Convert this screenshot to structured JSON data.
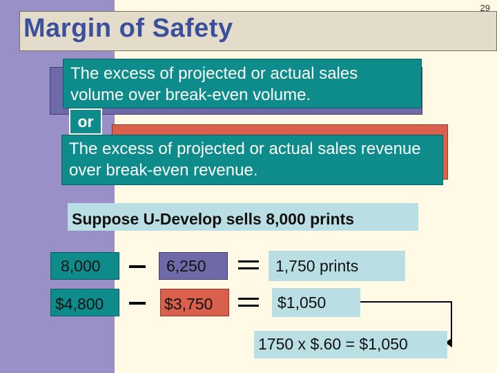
{
  "slide": {
    "page_number": "29",
    "title": "Margin of Safety"
  },
  "definitions": {
    "volume_text": "The excess of projected or actual sales volume over break-even volume.",
    "or_label": "or",
    "revenue_text": "The excess of projected or actual sales revenue over break-even revenue."
  },
  "example": {
    "heading": "Suppose U-Develop sells 8,000 prints",
    "units": {
      "sales": "8,000",
      "break_even": "6,250",
      "margin": "1,750 prints"
    },
    "dollars": {
      "sales": "$4,800",
      "break_even": "$3,750",
      "margin": "$1,050"
    },
    "calculation": "1750 x $.60 = $1,050"
  },
  "colors": {
    "left_bar": "#9a90c8",
    "title_text": "#3b4f9c",
    "teal": "#0e8c8c",
    "purple": "#6e6aa8",
    "red": "#d9604c",
    "light_blue": "#b9dfe4"
  }
}
